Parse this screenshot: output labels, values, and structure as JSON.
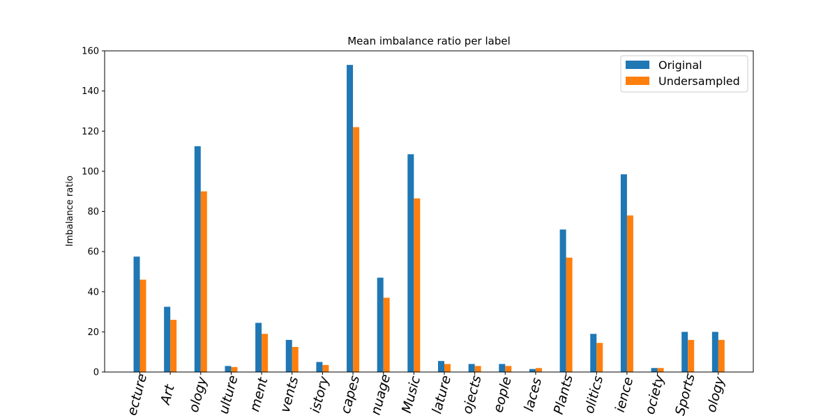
{
  "chart_data": {
    "type": "bar",
    "title": "Mean imbalance ratio per label",
    "xlabel": "",
    "ylabel": "Imbalance ratio",
    "ylim": [
      0,
      160
    ],
    "yticks": [
      0,
      20,
      40,
      60,
      80,
      100,
      120,
      140,
      160
    ],
    "legend": "top-right",
    "grid": false,
    "categories": [
      "Architecture",
      "Art",
      "Biology",
      "Culture",
      "Entertainment",
      "Events",
      "History",
      "Landscapes",
      "Language",
      "Music",
      "Nature",
      "Objects",
      "People",
      "Places",
      "Plants",
      "Politics",
      "Science",
      "Society",
      "Sports",
      "Technology"
    ],
    "category_labels_visible": [
      "ecture",
      "Art",
      "ology",
      "ulture",
      "ment",
      "vents",
      "istory",
      "capes",
      "nuage",
      "Music",
      "lature",
      "ojects",
      "eople",
      "laces",
      "Plants",
      "olitics",
      "ience",
      "ociety",
      "Sports",
      "ology"
    ],
    "series": [
      {
        "name": "Original",
        "color": "#1f77b4",
        "values": [
          57.5,
          32.5,
          112.5,
          3.0,
          24.5,
          16.0,
          5.0,
          153.0,
          47.0,
          108.5,
          5.5,
          4.0,
          4.0,
          1.5,
          71.0,
          19.0,
          98.5,
          2.0,
          20.0,
          20.0
        ]
      },
      {
        "name": "Undersampled",
        "color": "#ff7f0e",
        "values": [
          46.0,
          26.0,
          90.0,
          2.5,
          19.0,
          12.5,
          3.5,
          122.0,
          37.0,
          86.5,
          4.0,
          3.0,
          3.0,
          2.0,
          57.0,
          14.5,
          78.0,
          2.0,
          16.0,
          16.0
        ]
      }
    ]
  }
}
